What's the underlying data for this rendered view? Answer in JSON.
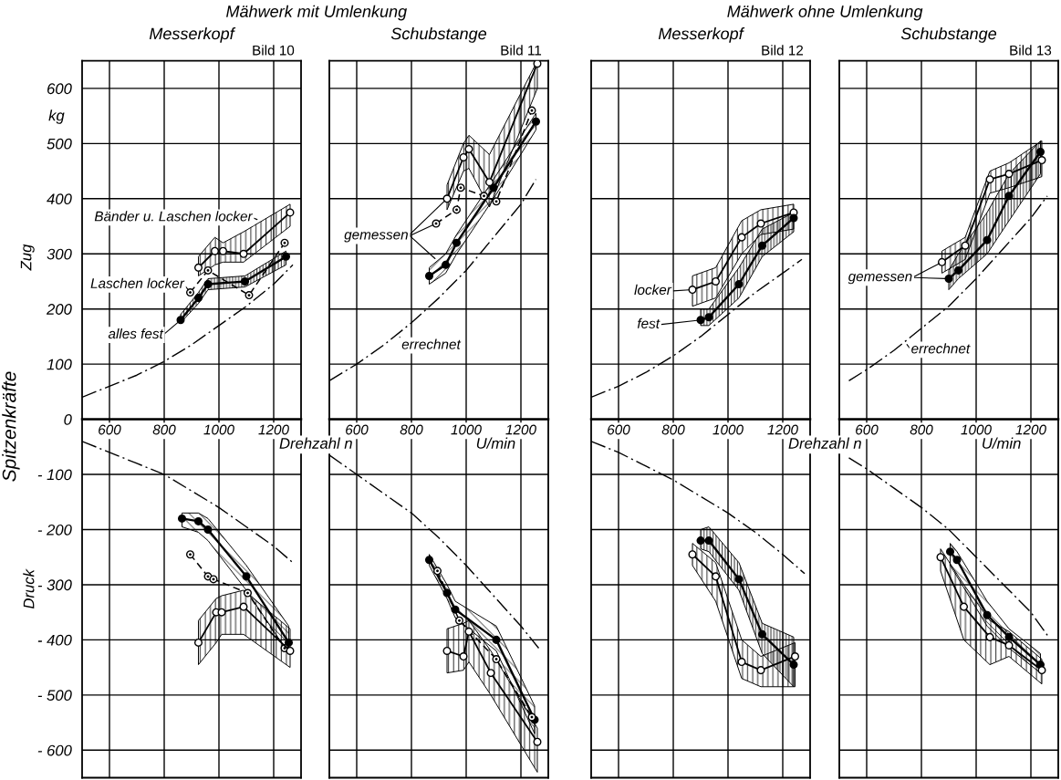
{
  "chart_data": [
    {
      "type": "line",
      "title": "Messerkopf",
      "subtitle": "Bild 10",
      "xlabel": "Drehzahl n",
      "ylabel": "Spitzenkräfte",
      "annotations": [
        "Mähwerk mit Umlenkung",
        "kg",
        "Zug",
        "Druck",
        {
          "text": "Bänder u. Laschen locker",
          "x": 1150,
          "y": 360
        },
        {
          "text": "Laschen locker",
          "x": 895,
          "y": 230
        },
        {
          "text": "alles fest",
          "x": 860,
          "y": 180
        }
      ],
      "xlim": [
        500,
        1300
      ],
      "ylim": [
        -650,
        650
      ],
      "xticks": [
        600,
        800,
        1000,
        1200
      ],
      "yticks": [
        {
          "value": -600,
          "label": "- 600"
        },
        {
          "value": -500,
          "label": "- 500"
        },
        {
          "value": -400,
          "label": "- 400"
        },
        {
          "value": -300,
          "label": "- 300"
        },
        {
          "value": -200,
          "label": "- 200"
        },
        {
          "value": -100,
          "label": "- 100"
        },
        0,
        100,
        200,
        300,
        400,
        500,
        600
      ],
      "grid": true,
      "series": [
        {
          "x": [
            500,
            600,
            700,
            800,
            900,
            1000,
            1100,
            1200,
            1270
          ],
          "values": [
            40,
            60,
            80,
            105,
            135,
            170,
            205,
            245,
            280
          ],
          "color": "#000000",
          "marker": "none",
          "line_style": "dashdot"
        },
        {
          "x": [
            500,
            600,
            700,
            800,
            900,
            1000,
            1100,
            1200,
            1270
          ],
          "values": [
            -40,
            -60,
            -80,
            -100,
            -130,
            -160,
            -195,
            -230,
            -260
          ],
          "color": "#000000",
          "marker": "none",
          "line_style": "dashdot"
        },
        {
          "x": [
            860,
            925,
            960,
            1095,
            1245
          ],
          "values": [
            180,
            220,
            245,
            250,
            295
          ],
          "lower": [
            175,
            210,
            235,
            240,
            280
          ],
          "upper": [
            190,
            230,
            255,
            260,
            305
          ],
          "color": "#000000",
          "marker": "circle",
          "line_style": "solid"
        },
        {
          "x": [
            895,
            960,
            1110,
            1240
          ],
          "values": [
            230,
            270,
            225,
            320
          ],
          "color": "#000000",
          "marker": "circle",
          "line_style": "dashed"
        },
        {
          "x": [
            925,
            985,
            1015,
            1090,
            1260
          ],
          "values": [
            275,
            305,
            305,
            300,
            375
          ],
          "lower": [
            260,
            280,
            285,
            285,
            350
          ],
          "upper": [
            295,
            330,
            320,
            340,
            390
          ],
          "color": "#000000",
          "marker": "circle",
          "line_style": "solid"
        },
        {
          "x": [
            865,
            925,
            960,
            1100,
            1255
          ],
          "values": [
            -180,
            -185,
            -200,
            -285,
            -405
          ],
          "lower": [
            -195,
            -205,
            -220,
            -310,
            -425
          ],
          "upper": [
            -170,
            -170,
            -180,
            -265,
            -375
          ],
          "color": "#000000",
          "marker": "circle",
          "line_style": "solid"
        },
        {
          "x": [
            895,
            960,
            980,
            1105,
            1240
          ],
          "values": [
            -245,
            -285,
            -290,
            -315,
            -415
          ],
          "color": "#000000",
          "marker": "circle",
          "line_style": "dashed"
        },
        {
          "x": [
            925,
            990,
            1010,
            1090,
            1260
          ],
          "values": [
            -405,
            -350,
            -350,
            -340,
            -420
          ],
          "lower": [
            -445,
            -405,
            -390,
            -390,
            -450
          ],
          "upper": [
            -365,
            -325,
            -320,
            -310,
            -380
          ],
          "color": "#000000",
          "marker": "circle",
          "line_style": "solid"
        }
      ]
    },
    {
      "type": "line",
      "title": "Schubstange",
      "subtitle": "Bild 11",
      "xlabel": "U/min",
      "annotations": [
        {
          "text": "gemessen",
          "x": 930,
          "y": 400
        },
        {
          "text": "errechnet",
          "x": 755,
          "y": 155
        }
      ],
      "xlim": [
        500,
        1300
      ],
      "ylim": [
        -650,
        650
      ],
      "xticks": [
        600,
        800,
        1000,
        1200
      ],
      "yticks": [
        -600,
        -500,
        -400,
        -300,
        -200,
        -100,
        0,
        100,
        200,
        300,
        400,
        500,
        600
      ],
      "grid": true,
      "tick_labels": "x",
      "series": [
        {
          "x": [
            500,
            600,
            700,
            800,
            900,
            1000,
            1100,
            1200,
            1255
          ],
          "values": [
            70,
            100,
            135,
            175,
            220,
            270,
            330,
            390,
            435
          ],
          "color": "#000000",
          "marker": "none",
          "line_style": "dashdot"
        },
        {
          "x": [
            500,
            600,
            700,
            800,
            900,
            1000,
            1100,
            1200,
            1265
          ],
          "values": [
            -65,
            -100,
            -135,
            -170,
            -215,
            -265,
            -320,
            -375,
            -415
          ],
          "color": "#000000",
          "marker": "none",
          "line_style": "dashdot"
        },
        {
          "x": [
            865,
            925,
            965,
            1100,
            1255
          ],
          "values": [
            260,
            280,
            320,
            420,
            540
          ],
          "lower": [
            245,
            265,
            300,
            400,
            525
          ],
          "upper": [
            275,
            300,
            335,
            435,
            555
          ],
          "color": "#000000",
          "marker": "circle",
          "line_style": "solid"
        },
        {
          "x": [
            890,
            965,
            980,
            1065,
            1110,
            1240
          ],
          "values": [
            355,
            380,
            420,
            405,
            395,
            560
          ],
          "color": "#000000",
          "marker": "circle",
          "line_style": "dashed"
        },
        {
          "x": [
            930,
            990,
            1010,
            1085,
            1260
          ],
          "values": [
            400,
            475,
            490,
            430,
            645
          ],
          "lower": [
            380,
            450,
            455,
            385,
            600
          ],
          "upper": [
            425,
            500,
            515,
            480,
            650
          ],
          "color": "#000000",
          "marker": "circle",
          "line_style": "solid"
        },
        {
          "x": [
            865,
            930,
            960,
            1110,
            1250
          ],
          "values": [
            -255,
            -315,
            -345,
            -400,
            -545
          ],
          "lower": [
            -265,
            -325,
            -360,
            -420,
            -570
          ],
          "upper": [
            -245,
            -300,
            -330,
            -375,
            -520
          ],
          "color": "#000000",
          "marker": "circle",
          "line_style": "solid"
        },
        {
          "x": [
            895,
            975,
            1110,
            1240
          ],
          "values": [
            -275,
            -365,
            -435,
            -540
          ],
          "color": "#000000",
          "marker": "circle",
          "line_style": "dashed"
        },
        {
          "x": [
            930,
            990,
            1010,
            1090,
            1260
          ],
          "values": [
            -420,
            -430,
            -385,
            -460,
            -585
          ],
          "lower": [
            -460,
            -455,
            -440,
            -500,
            -640
          ],
          "upper": [
            -380,
            -370,
            -365,
            -420,
            -560
          ],
          "color": "#000000",
          "marker": "circle",
          "line_style": "solid"
        }
      ]
    },
    {
      "type": "line",
      "title": "Messerkopf",
      "subtitle": "Bild 12",
      "xlabel": "Drehzahl n",
      "annotations": [
        "Mähwerk ohne Umlenkung",
        {
          "text": "locker",
          "x": 870,
          "y": 235
        },
        {
          "text": "fest",
          "x": 900,
          "y": 180
        }
      ],
      "xlim": [
        500,
        1300
      ],
      "ylim": [
        -650,
        650
      ],
      "xticks": [
        600,
        800,
        1000,
        1200
      ],
      "yticks": [
        -600,
        -500,
        -400,
        -300,
        -200,
        -100,
        0,
        100,
        200,
        300,
        400,
        500,
        600
      ],
      "grid": true,
      "tick_labels": "x",
      "series": [
        {
          "x": [
            500,
            600,
            700,
            800,
            900,
            1000,
            1100,
            1200,
            1270
          ],
          "values": [
            40,
            60,
            85,
            115,
            150,
            190,
            230,
            265,
            290
          ],
          "color": "#000000",
          "marker": "none",
          "line_style": "dashdot"
        },
        {
          "x": [
            500,
            600,
            700,
            800,
            900,
            1000,
            1100,
            1200,
            1280
          ],
          "values": [
            -40,
            -60,
            -85,
            -110,
            -140,
            -170,
            -205,
            -245,
            -280
          ],
          "color": "#000000",
          "marker": "none",
          "line_style": "dashdot"
        },
        {
          "x": [
            870,
            955,
            1050,
            1120,
            1240
          ],
          "values": [
            235,
            250,
            330,
            355,
            375
          ],
          "lower": [
            205,
            220,
            300,
            335,
            345
          ],
          "upper": [
            260,
            275,
            360,
            380,
            390
          ],
          "color": "#000000",
          "marker": "circle",
          "line_style": "solid"
        },
        {
          "x": [
            900,
            930,
            1040,
            1125,
            1240
          ],
          "values": [
            180,
            185,
            245,
            315,
            365
          ],
          "lower": [
            170,
            170,
            220,
            295,
            340
          ],
          "upper": [
            200,
            200,
            275,
            345,
            375
          ],
          "color": "#000000",
          "marker": "circle",
          "line_style": "solid"
        },
        {
          "x": [
            900,
            930,
            1040,
            1125,
            1240
          ],
          "values": [
            -220,
            -220,
            -290,
            -390,
            -445
          ],
          "lower": [
            -235,
            -240,
            -310,
            -425,
            -485
          ],
          "upper": [
            -200,
            -195,
            -260,
            -370,
            -395
          ],
          "color": "#000000",
          "marker": "circle",
          "line_style": "solid"
        },
        {
          "x": [
            870,
            955,
            1050,
            1120,
            1245
          ],
          "values": [
            -245,
            -285,
            -440,
            -455,
            -430
          ],
          "lower": [
            -265,
            -330,
            -470,
            -485,
            -485
          ],
          "upper": [
            -225,
            -260,
            -400,
            -430,
            -405
          ],
          "color": "#000000",
          "marker": "circle",
          "line_style": "solid"
        }
      ]
    },
    {
      "type": "line",
      "title": "Schubstange",
      "subtitle": "Bild 13",
      "xlabel": "U/min",
      "annotations": [
        {
          "text": "gemessen",
          "x": 875,
          "y": 285
        },
        {
          "text": "errechnet",
          "x": 740,
          "y": 140
        }
      ],
      "xlim": [
        500,
        1300
      ],
      "ylim": [
        -650,
        650
      ],
      "xticks": [
        600,
        800,
        1000,
        1200
      ],
      "yticks": [
        -600,
        -500,
        -400,
        -300,
        -200,
        -100,
        0,
        100,
        200,
        300,
        400,
        500,
        600
      ],
      "grid": true,
      "tick_labels": "x",
      "series": [
        {
          "x": [
            535,
            600,
            700,
            800,
            900,
            1000,
            1100,
            1200,
            1260
          ],
          "values": [
            70,
            90,
            125,
            165,
            205,
            255,
            310,
            365,
            405
          ],
          "color": "#000000",
          "marker": "none",
          "line_style": "dashdot"
        },
        {
          "x": [
            535,
            600,
            700,
            800,
            900,
            1000,
            1100,
            1200,
            1265
          ],
          "values": [
            -70,
            -90,
            -125,
            -160,
            -200,
            -250,
            -300,
            -350,
            -395
          ],
          "color": "#000000",
          "marker": "none",
          "line_style": "dashdot"
        },
        {
          "x": [
            875,
            960,
            1050,
            1120,
            1240
          ],
          "values": [
            285,
            315,
            435,
            445,
            470
          ],
          "lower": [
            265,
            290,
            410,
            420,
            440
          ],
          "upper": [
            305,
            330,
            450,
            465,
            505
          ],
          "color": "#000000",
          "marker": "circle",
          "line_style": "solid"
        },
        {
          "x": [
            900,
            935,
            1040,
            1120,
            1235
          ],
          "values": [
            255,
            270,
            325,
            405,
            485
          ],
          "lower": [
            235,
            255,
            300,
            360,
            445
          ],
          "upper": [
            270,
            300,
            375,
            445,
            505
          ],
          "color": "#000000",
          "marker": "circle",
          "line_style": "solid"
        },
        {
          "x": [
            905,
            930,
            1040,
            1120,
            1235
          ],
          "values": [
            -240,
            -255,
            -355,
            -395,
            -445
          ],
          "lower": [
            -265,
            -285,
            -375,
            -415,
            -460
          ],
          "upper": [
            -225,
            -240,
            -330,
            -380,
            -425
          ],
          "color": "#000000",
          "marker": "circle",
          "line_style": "solid"
        },
        {
          "x": [
            870,
            955,
            1050,
            1120,
            1240
          ],
          "values": [
            -250,
            -340,
            -395,
            -410,
            -455
          ],
          "lower": [
            -275,
            -400,
            -445,
            -430,
            -480
          ],
          "upper": [
            -235,
            -300,
            -365,
            -385,
            -435
          ],
          "color": "#000000",
          "marker": "circle",
          "line_style": "solid"
        }
      ]
    }
  ]
}
